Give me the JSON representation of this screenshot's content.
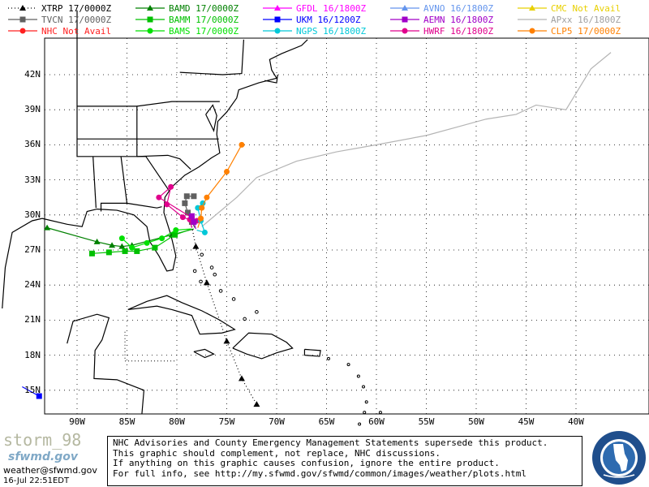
{
  "legend": [
    {
      "name": "XTRP",
      "time": "17/0000Z",
      "color": "#000000",
      "marker": "triangle",
      "dash": "dot"
    },
    {
      "name": "TVCN",
      "time": "17/0000Z",
      "color": "#606060",
      "marker": "square",
      "dash": "solid"
    },
    {
      "name": "NHC",
      "time": "Not Avail",
      "color": "#ff2020",
      "marker": "circle",
      "dash": "solid"
    },
    {
      "name": "BAMD",
      "time": "17/0000Z",
      "color": "#008000",
      "marker": "triangle",
      "dash": "solid"
    },
    {
      "name": "BAMM",
      "time": "17/0000Z",
      "color": "#00c000",
      "marker": "square",
      "dash": "solid"
    },
    {
      "name": "BAMS",
      "time": "17/0000Z",
      "color": "#00e000",
      "marker": "circle",
      "dash": "solid"
    },
    {
      "name": "GFDL",
      "time": "16/1800Z",
      "color": "#ff00ff",
      "marker": "triangle",
      "dash": "solid"
    },
    {
      "name": "UKM",
      "time": "16/1200Z",
      "color": "#0000ff",
      "marker": "square",
      "dash": "solid"
    },
    {
      "name": "NGPS",
      "time": "16/1800Z",
      "color": "#00c8d8",
      "marker": "circle",
      "dash": "solid"
    },
    {
      "name": "AVNO",
      "time": "16/1800Z",
      "color": "#6495ed",
      "marker": "triangle",
      "dash": "solid"
    },
    {
      "name": "AEMN",
      "time": "16/1800Z",
      "color": "#a000c8",
      "marker": "square",
      "dash": "solid"
    },
    {
      "name": "HWRF",
      "time": "16/1800Z",
      "color": "#e0008c",
      "marker": "circle",
      "dash": "solid"
    },
    {
      "name": "CMC",
      "time": "Not Avail",
      "color": "#e8d000",
      "marker": "triangle",
      "dash": "solid"
    },
    {
      "name": "APxx",
      "time": "16/1800Z",
      "color": "#b4b4b4",
      "marker": "none",
      "dash": "solid"
    },
    {
      "name": "CLP5",
      "time": "17/0000Z",
      "color": "#ff8000",
      "marker": "circle",
      "dash": "solid"
    }
  ],
  "axes": {
    "lat_labels": [
      "42N",
      "39N",
      "36N",
      "33N",
      "30N",
      "27N",
      "24N",
      "21N",
      "18N",
      "15N"
    ],
    "lon_labels": [
      "90W",
      "85W",
      "80W",
      "75W",
      "70W",
      "65W",
      "60W",
      "55W",
      "50W",
      "45W",
      "40W"
    ]
  },
  "tracks": {
    "XTRP": [
      [
        -78.5,
        29.0
      ],
      [
        -78.1,
        27.3
      ],
      [
        -77.0,
        24.2
      ],
      [
        -75.0,
        19.2
      ],
      [
        -73.5,
        16.0
      ],
      [
        -72.0,
        13.8
      ]
    ],
    "TVCN": [
      [
        -78.2,
        28.9
      ],
      [
        -78.5,
        29.4
      ],
      [
        -78.9,
        30.2
      ],
      [
        -79.2,
        31.0
      ],
      [
        -79.0,
        31.6
      ],
      [
        -78.3,
        31.6
      ]
    ],
    "BAMD": [
      [
        -78.3,
        28.8
      ],
      [
        -80.5,
        28.3
      ],
      [
        -84.5,
        27.4
      ],
      [
        -85.5,
        27.3
      ],
      [
        -86.5,
        27.4
      ],
      [
        -88.0,
        27.7
      ],
      [
        -93.0,
        28.9
      ]
    ],
    "BAMM": [
      [
        -78.5,
        28.8
      ],
      [
        -80.2,
        28.3
      ],
      [
        -82.2,
        27.2
      ],
      [
        -84.0,
        26.9
      ],
      [
        -85.2,
        26.9
      ],
      [
        -86.8,
        26.8
      ],
      [
        -88.5,
        26.7
      ]
    ],
    "BAMS": [
      [
        -78.6,
        28.8
      ],
      [
        -80.1,
        28.7
      ],
      [
        -81.5,
        28.0
      ],
      [
        -83.0,
        27.6
      ],
      [
        -84.5,
        27.2
      ],
      [
        -85.5,
        28.0
      ]
    ],
    "UKM": [
      [
        -95.5,
        15.3
      ],
      [
        -93.8,
        14.5
      ]
    ],
    "NGPS": [
      [
        -78.0,
        28.7
      ],
      [
        -77.2,
        28.5
      ],
      [
        -77.6,
        29.5
      ],
      [
        -77.9,
        30.6
      ],
      [
        -77.4,
        31.0
      ]
    ],
    "AEMN": [
      [
        -78.1,
        28.8
      ],
      [
        -78.3,
        29.4
      ],
      [
        -78.5,
        29.9
      ]
    ],
    "HWRF": [
      [
        -78.5,
        28.9
      ],
      [
        -78.7,
        29.6
      ],
      [
        -79.4,
        29.8
      ],
      [
        -81.0,
        30.9
      ],
      [
        -80.6,
        32.4
      ],
      [
        -81.8,
        31.5
      ],
      [
        -78.0,
        29.5
      ]
    ],
    "CLP5": [
      [
        -77.9,
        28.9
      ],
      [
        -77.6,
        29.7
      ],
      [
        -77.5,
        30.6
      ],
      [
        -77.0,
        31.5
      ],
      [
        -75.0,
        33.7
      ],
      [
        -73.5,
        36.0
      ]
    ],
    "APxx": [
      [
        -77.5,
        29.0
      ],
      [
        -74.0,
        31.5
      ],
      [
        -72.0,
        33.2
      ],
      [
        -68.0,
        34.6
      ],
      [
        -64.0,
        35.4
      ],
      [
        -60.0,
        36.0
      ],
      [
        -55.0,
        36.8
      ],
      [
        -52.0,
        37.5
      ],
      [
        -49.0,
        38.2
      ],
      [
        -46.0,
        38.6
      ],
      [
        -44.0,
        39.4
      ],
      [
        -41.0,
        39.0
      ],
      [
        -38.5,
        42.5
      ],
      [
        -36.5,
        43.9
      ]
    ]
  },
  "footer": {
    "storm_name": "storm_98",
    "logo_text": "sfwmd.gov",
    "email": "weather@sfwmd.gov",
    "datetime": "16-Jul 22:51EDT",
    "disclaimer": [
      "NHC Advisories and County Emergency Management Statements supersede this product.",
      "This graphic should complement, not replace, NHC discussions.",
      "If anything on this graphic causes confusion, ignore the entire product.",
      "For full info, see  http://my.sfwmd.gov/sfwmd/common/images/weather/plots.html"
    ],
    "seal_text": "SOUTH FLORIDA WATER MANAGEMENT DISTRICT"
  }
}
